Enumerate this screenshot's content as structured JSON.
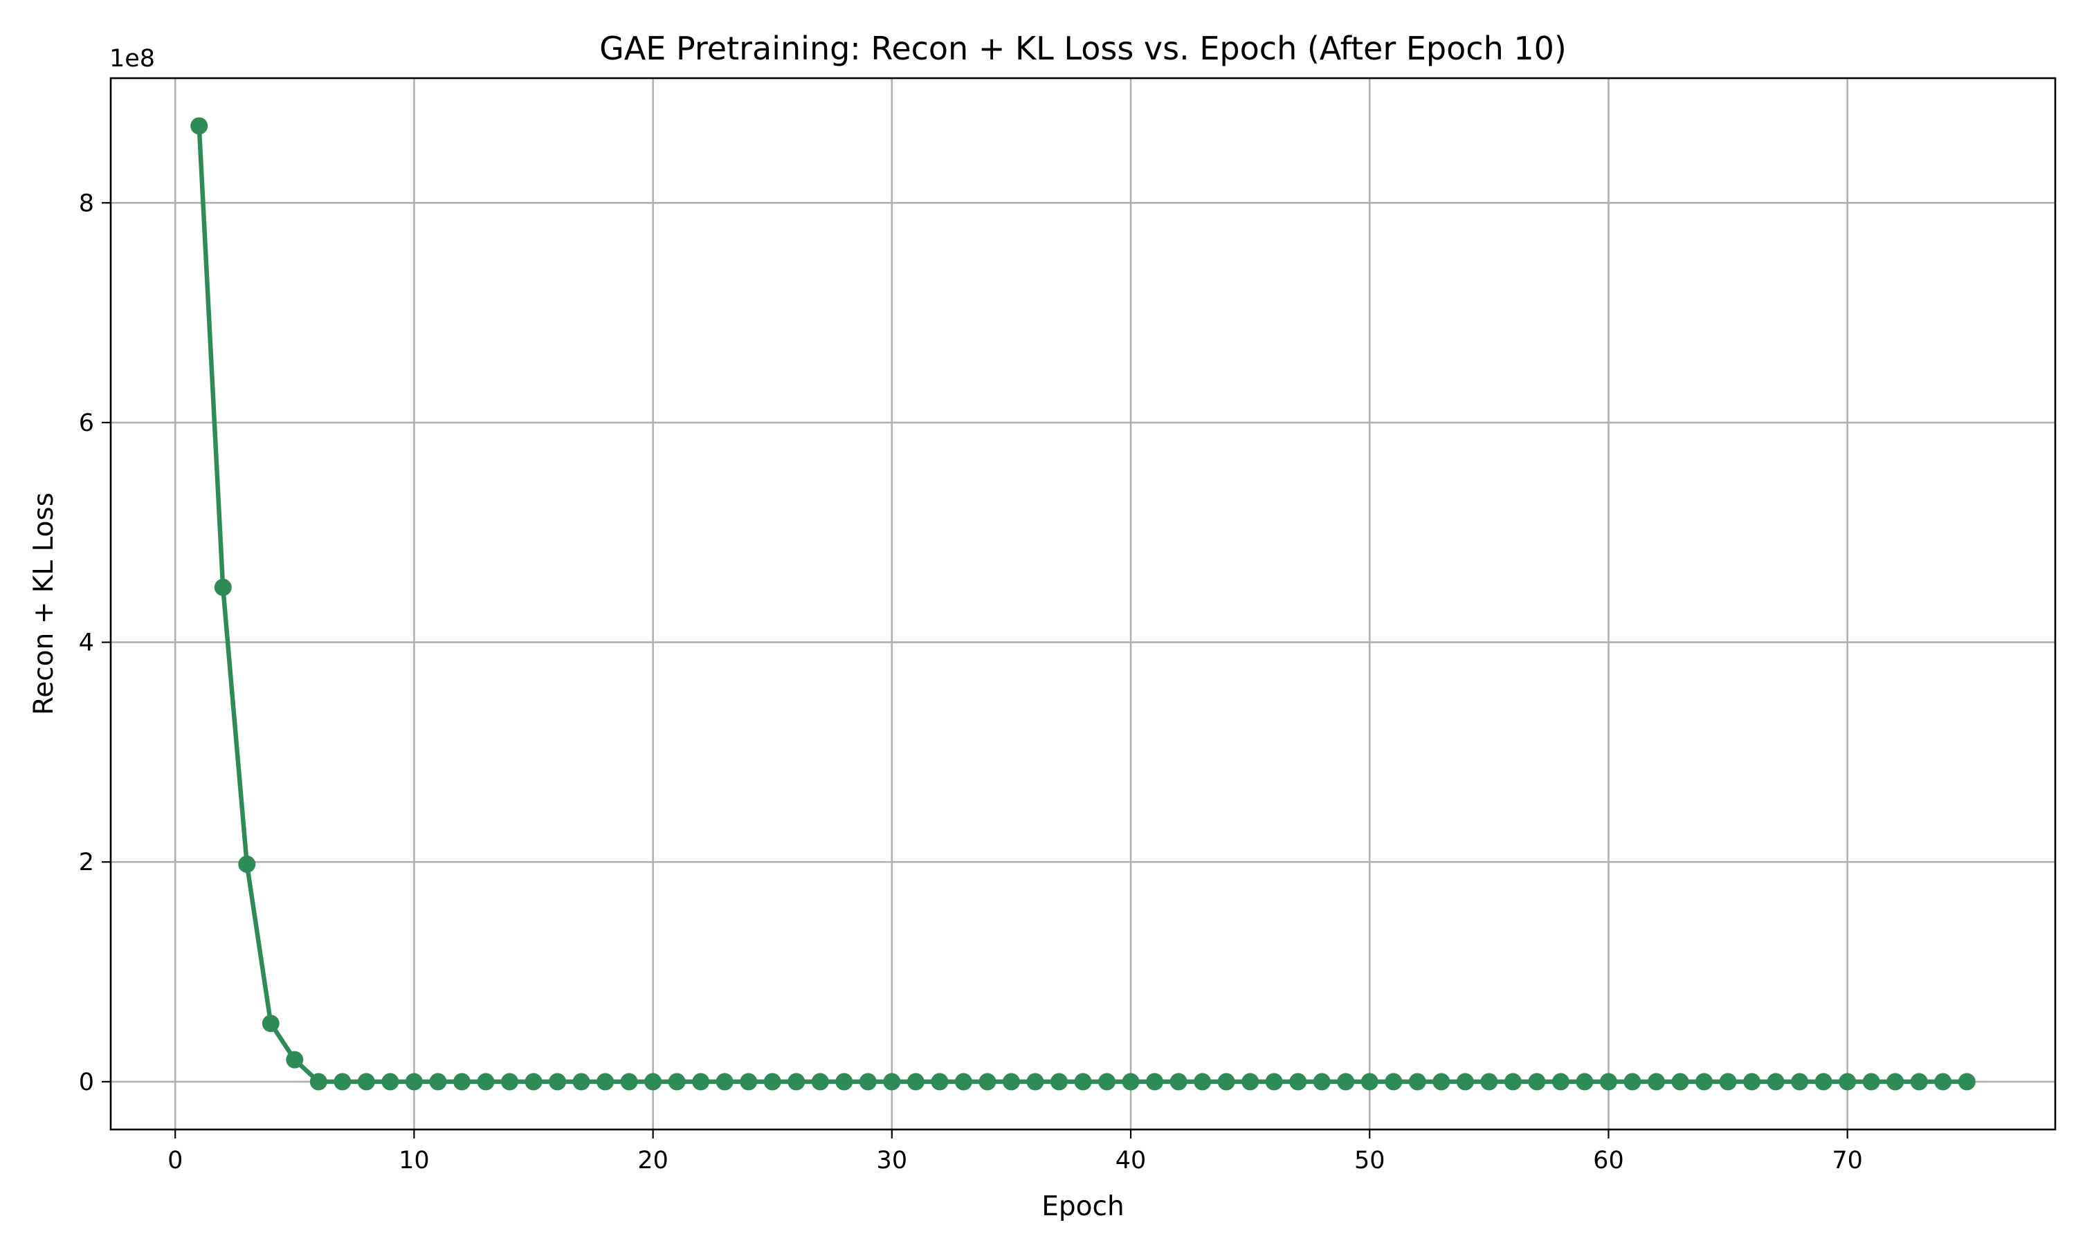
{
  "chart_data": {
    "type": "line",
    "title": "GAE Pretraining: Recon + KL Loss vs. Epoch (After Epoch 10)",
    "xlabel": "Epoch",
    "ylabel": "Recon + KL Loss",
    "y_multiplier_label": "1e8",
    "xlim": [
      -2.7,
      78.7
    ],
    "ylim": [
      -0.435,
      9.135
    ],
    "x_ticks": [
      0,
      10,
      20,
      30,
      40,
      50,
      60,
      70
    ],
    "x_tick_labels": [
      "0",
      "10",
      "20",
      "30",
      "40",
      "50",
      "60",
      "70"
    ],
    "y_ticks": [
      0,
      2,
      4,
      6,
      8
    ],
    "y_tick_labels": [
      "0",
      "2",
      "4",
      "6",
      "8"
    ],
    "y_unit_note": "values in units of 1e8",
    "grid": true,
    "line_color": "#2e8b57",
    "series": [
      {
        "x": [
          1,
          2,
          3,
          4,
          5,
          6,
          7,
          8,
          9,
          10,
          11,
          12,
          13,
          14,
          15,
          16,
          17,
          18,
          19,
          20,
          21,
          22,
          23,
          24,
          25,
          26,
          27,
          28,
          29,
          30,
          31,
          32,
          33,
          34,
          35,
          36,
          37,
          38,
          39,
          40,
          41,
          42,
          43,
          44,
          45,
          46,
          47,
          48,
          49,
          50,
          51,
          52,
          53,
          54,
          55,
          56,
          57,
          58,
          59,
          60,
          61,
          62,
          63,
          64,
          65,
          66,
          67,
          68,
          69,
          70,
          71,
          72,
          73,
          74,
          75
        ],
        "values": [
          8.7,
          4.5,
          1.98,
          0.53,
          0.2,
          0.0,
          0.0,
          0.0,
          0.0,
          0.0,
          0.0,
          0.0,
          0.0,
          0.0,
          0.0,
          0.0,
          0.0,
          0.0,
          0.0,
          0.0,
          0.0,
          0.0,
          0.0,
          0.0,
          0.0,
          0.0,
          0.0,
          0.0,
          0.0,
          0.0,
          0.0,
          0.0,
          0.0,
          0.0,
          0.0,
          0.0,
          0.0,
          0.0,
          0.0,
          0.0,
          0.0,
          0.0,
          0.0,
          0.0,
          0.0,
          0.0,
          0.0,
          0.0,
          0.0,
          0.0,
          0.0,
          0.0,
          0.0,
          0.0,
          0.0,
          0.0,
          0.0,
          0.0,
          0.0,
          0.0,
          0.0,
          0.0,
          0.0,
          0.0,
          0.0,
          0.0,
          0.0,
          0.0,
          0.0,
          0.0,
          0.0,
          0.0,
          0.0,
          0.0,
          0.0
        ]
      }
    ]
  }
}
